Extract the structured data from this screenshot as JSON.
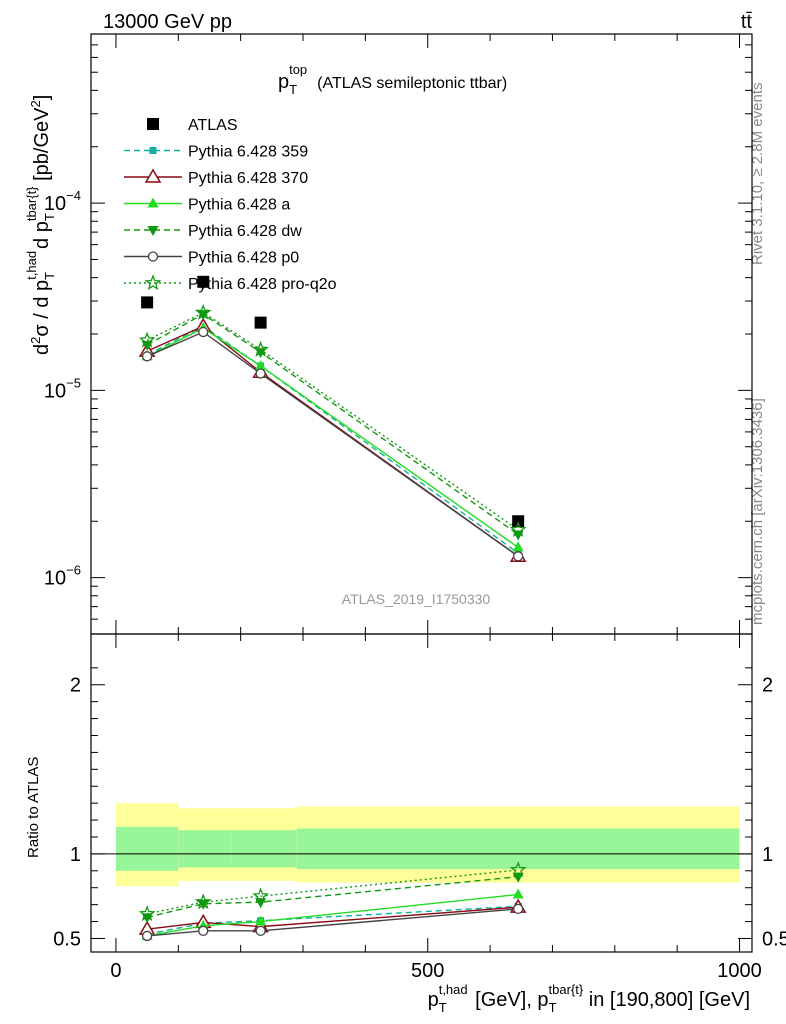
{
  "header": {
    "left": "13000 GeV pp",
    "right": "tt̄"
  },
  "side": {
    "rivet": "Rivet 3.1.10, ≥ 2.8M events",
    "mcplots": "mcplots.cern.ch [arXiv:1306.3436]"
  },
  "chart_data": [
    {
      "type": "line",
      "title": "p_T^top (ATLAS semileptonic ttbar)",
      "title_main": "p",
      "title_sub": "T",
      "title_sup": "top",
      "title_rest": "(ATLAS semileptonic ttbar)",
      "watermark": "ATLAS_2019_I1750330",
      "ylabel": "d²σ / d p_T^{t,had} d p_T^{tbar{t}} [pb/GeV²]",
      "yscale": "log",
      "ylim": [
        5e-07,
        0.0008
      ],
      "yticks": [
        {
          "value": 1e-06,
          "label": "10",
          "exp": "−6"
        },
        {
          "value": 1e-05,
          "label": "10",
          "exp": "−5"
        },
        {
          "value": 0.0001,
          "label": "10",
          "exp": "−4"
        }
      ],
      "xlim": [
        -40,
        1020
      ],
      "x": [
        50,
        140,
        232,
        645
      ],
      "legend_position": "upper-left",
      "series": [
        {
          "name": "ATLAS",
          "color": "#000000",
          "marker": "square",
          "line": "none",
          "values": [
            2.95e-05,
            3.8e-05,
            2.3e-05,
            2e-06
          ]
        },
        {
          "name": "Pythia 6.428 359",
          "color": "#10b0a0",
          "marker": "small-square",
          "line": "dashed",
          "values": [
            1.55e-05,
            2.2e-05,
            1.35e-05,
            1.35e-06
          ]
        },
        {
          "name": "Pythia 6.428 370",
          "color": "#8b0a14",
          "marker": "open-triangle",
          "line": "solid",
          "values": [
            1.62e-05,
            2.2e-05,
            1.25e-05,
            1.3e-06
          ]
        },
        {
          "name": "Pythia 6.428 a",
          "color": "#22dd22",
          "marker": "triangle",
          "line": "solid",
          "values": [
            1.52e-05,
            2.15e-05,
            1.35e-05,
            1.45e-06
          ]
        },
        {
          "name": "Pythia 6.428 dw",
          "color": "#119911",
          "marker": "down-triangle",
          "line": "dashed",
          "values": [
            1.75e-05,
            2.55e-05,
            1.6e-05,
            1.7e-06
          ]
        },
        {
          "name": "Pythia 6.428 p0",
          "color": "#444444",
          "marker": "open-circle",
          "line": "solid",
          "values": [
            1.52e-05,
            2.05e-05,
            1.23e-05,
            1.3e-06
          ]
        },
        {
          "name": "Pythia 6.428 pro-q2o",
          "color": "#119911",
          "marker": "open-star",
          "line": "dotted",
          "values": [
            1.85e-05,
            2.6e-05,
            1.65e-05,
            1.8e-06
          ]
        }
      ]
    },
    {
      "type": "line",
      "ylabel": "Ratio to ATLAS",
      "xlabel": "p_T^{t,had} [GeV], p_T^{tbar{t}} in [190,800] [GeV]",
      "ylim": [
        0.42,
        2.3
      ],
      "yticks": [
        {
          "value": 0.5,
          "label": "0.5"
        },
        {
          "value": 1,
          "label": "1"
        },
        {
          "value": 2,
          "label": "2"
        }
      ],
      "xlim": [
        -40,
        1020
      ],
      "xticks": [
        {
          "value": 0,
          "label": "0"
        },
        {
          "value": 500,
          "label": "500"
        },
        {
          "value": 1000,
          "label": "1000"
        }
      ],
      "x": [
        50,
        140,
        232,
        645
      ],
      "bands": [
        {
          "x0": 0,
          "x1": 100,
          "yellow": [
            0.81,
            1.3
          ],
          "green": [
            0.9,
            1.16
          ]
        },
        {
          "x0": 100,
          "x1": 185,
          "yellow": [
            0.84,
            1.27
          ],
          "green": [
            0.92,
            1.14
          ]
        },
        {
          "x0": 185,
          "x1": 290,
          "yellow": [
            0.84,
            1.27
          ],
          "green": [
            0.92,
            1.14
          ]
        },
        {
          "x0": 290,
          "x1": 1000,
          "yellow": [
            0.83,
            1.28
          ],
          "green": [
            0.91,
            1.15
          ]
        }
      ],
      "series": [
        {
          "name": "Pythia 6.428 359",
          "color": "#10b0a0",
          "marker": "small-square",
          "line": "dashed",
          "values": [
            0.525,
            0.59,
            0.605,
            0.69
          ]
        },
        {
          "name": "Pythia 6.428 370",
          "color": "#8b0a14",
          "marker": "open-triangle",
          "line": "solid",
          "values": [
            0.555,
            0.595,
            0.57,
            0.685
          ]
        },
        {
          "name": "Pythia 6.428 a",
          "color": "#22dd22",
          "marker": "triangle",
          "line": "solid",
          "values": [
            0.515,
            0.575,
            0.6,
            0.76
          ]
        },
        {
          "name": "Pythia 6.428 dw",
          "color": "#119911",
          "marker": "down-triangle",
          "line": "dashed",
          "values": [
            0.625,
            0.705,
            0.715,
            0.865
          ]
        },
        {
          "name": "Pythia 6.428 p0",
          "color": "#444444",
          "marker": "open-circle",
          "line": "solid",
          "values": [
            0.515,
            0.545,
            0.545,
            0.675
          ]
        },
        {
          "name": "Pythia 6.428 pro-q2o",
          "color": "#119911",
          "marker": "open-star",
          "line": "dotted",
          "values": [
            0.645,
            0.715,
            0.75,
            0.905
          ]
        }
      ]
    }
  ]
}
